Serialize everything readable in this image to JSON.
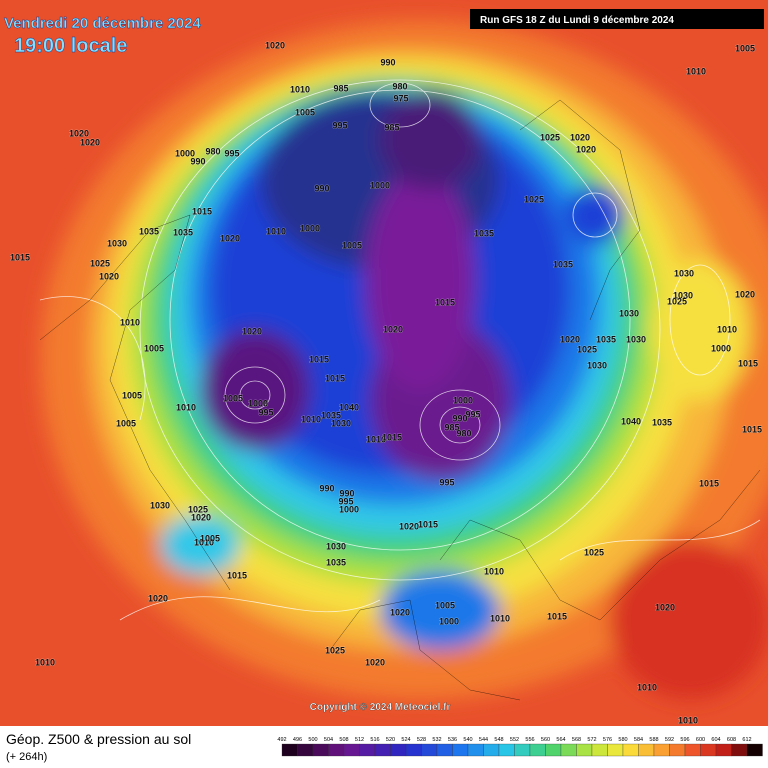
{
  "header": {
    "date": "Vendredi 20 décembre 2024",
    "time": "19:00 locale",
    "run": "Run GFS 18 Z du Lundi 9 décembre 2024"
  },
  "copyright": "Copyright © 2024 Meteociel.fr",
  "footer": {
    "title": "Géop. Z500 & pression au sol",
    "lead": "(+ 264h)"
  },
  "scale": [
    492,
    496,
    500,
    504,
    508,
    512,
    516,
    520,
    524,
    528,
    532,
    536,
    540,
    544,
    548,
    552,
    556,
    560,
    564,
    568,
    572,
    576,
    580,
    584,
    588,
    592,
    596,
    600,
    604,
    608,
    612
  ],
  "isobar_labels": [
    1020,
    990,
    980,
    975,
    985,
    1010,
    1005,
    995,
    985,
    1005,
    1010,
    1020,
    1020,
    1000,
    990,
    980,
    995,
    1025,
    1020,
    1020,
    990,
    1000,
    1025,
    1015,
    1035,
    1035,
    1030,
    1020,
    1010,
    1000,
    1005,
    1035,
    1015,
    1025,
    1020,
    1035,
    1030,
    1030,
    1020,
    1025,
    1015,
    1030,
    1010,
    1020,
    1020,
    1020,
    1035,
    1030,
    1010,
    1025,
    1000,
    1005,
    1015,
    1030,
    1015,
    1015,
    1005,
    1005,
    1000,
    995,
    1010,
    1000,
    995,
    990,
    985,
    980,
    1040,
    1035,
    1030,
    1010,
    1040,
    1035,
    1015,
    1005,
    1010,
    1015,
    995,
    1015,
    990,
    990,
    995,
    1000,
    1030,
    1025,
    1020,
    1020,
    1015,
    1010,
    1005,
    1030,
    1025,
    1035,
    1015,
    1010,
    1020,
    1005,
    1000,
    1020,
    1015,
    1020,
    1010,
    1025,
    1020,
    1010,
    1010,
    1010
  ]
}
